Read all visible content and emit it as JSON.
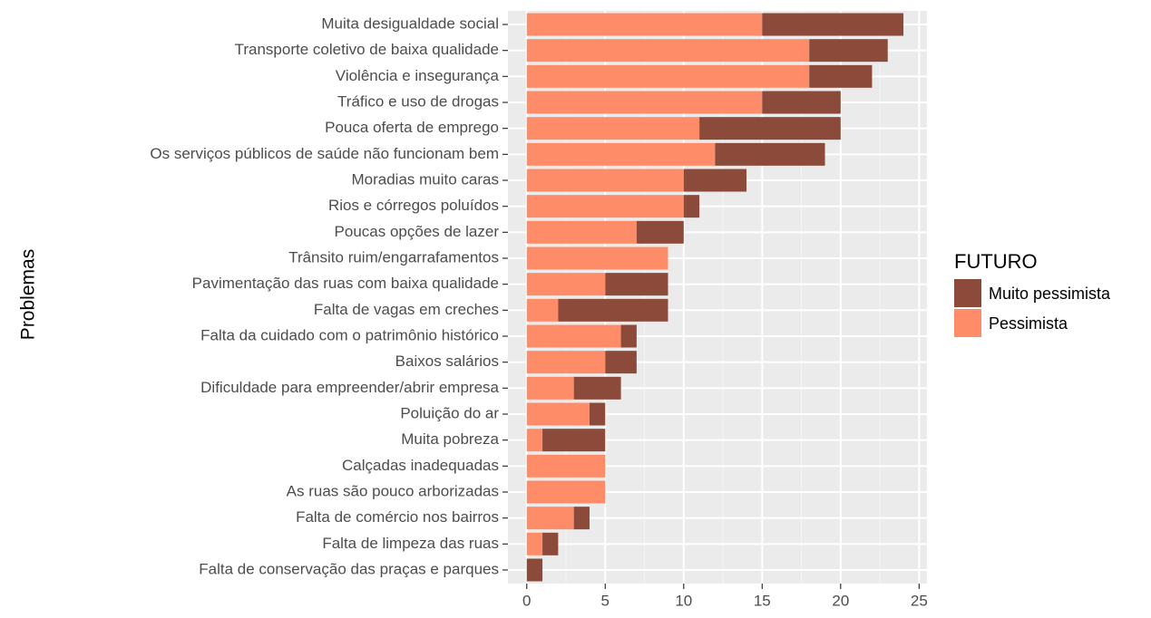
{
  "chart_data": {
    "type": "stacked-barh",
    "y_label": "Problemas",
    "legend_title": "FUTURO",
    "categories": [
      "Muita desigualdade social",
      "Transporte coletivo de baixa qualidade",
      "Violência e insegurança",
      "Tráfico e uso de drogas",
      "Pouca oferta de emprego",
      "Os serviços públicos de saúde não funcionam bem",
      "Moradias muito caras",
      "Rios e córregos poluídos",
      "Poucas opções de lazer",
      "Trânsito ruim/engarrafamentos",
      "Pavimentação das ruas com baixa qualidade",
      "Falta de vagas em creches",
      "Falta da cuidado com o patrimônio histórico",
      "Baixos salários",
      "Dificuldade para empreender/abrir empresa",
      "Poluição do ar",
      "Muita pobreza",
      "Calçadas inadequadas",
      "As ruas são pouco arborizadas",
      "Falta de comércio nos bairros",
      "Falta de limpeza das ruas",
      "Falta de conservação das praças e parques"
    ],
    "series": [
      {
        "name": "Muito pessimista",
        "color": "#8b4a3a",
        "values": [
          9,
          5,
          4,
          5,
          9,
          7,
          4,
          1,
          3,
          0,
          4,
          7,
          1,
          2,
          3,
          1,
          4,
          0,
          0,
          1,
          1,
          1
        ]
      },
      {
        "name": "Pessimista",
        "color": "#ff8c69",
        "values": [
          15,
          18,
          18,
          15,
          11,
          12,
          10,
          10,
          7,
          9,
          5,
          2,
          6,
          5,
          3,
          4,
          1,
          5,
          5,
          3,
          1,
          0
        ]
      }
    ],
    "stack_order": [
      1,
      0
    ],
    "xlim": [
      -1.2,
      25.5
    ],
    "xticks": [
      0,
      5,
      10,
      15,
      20,
      25
    ],
    "grid": true,
    "legend": "right"
  }
}
